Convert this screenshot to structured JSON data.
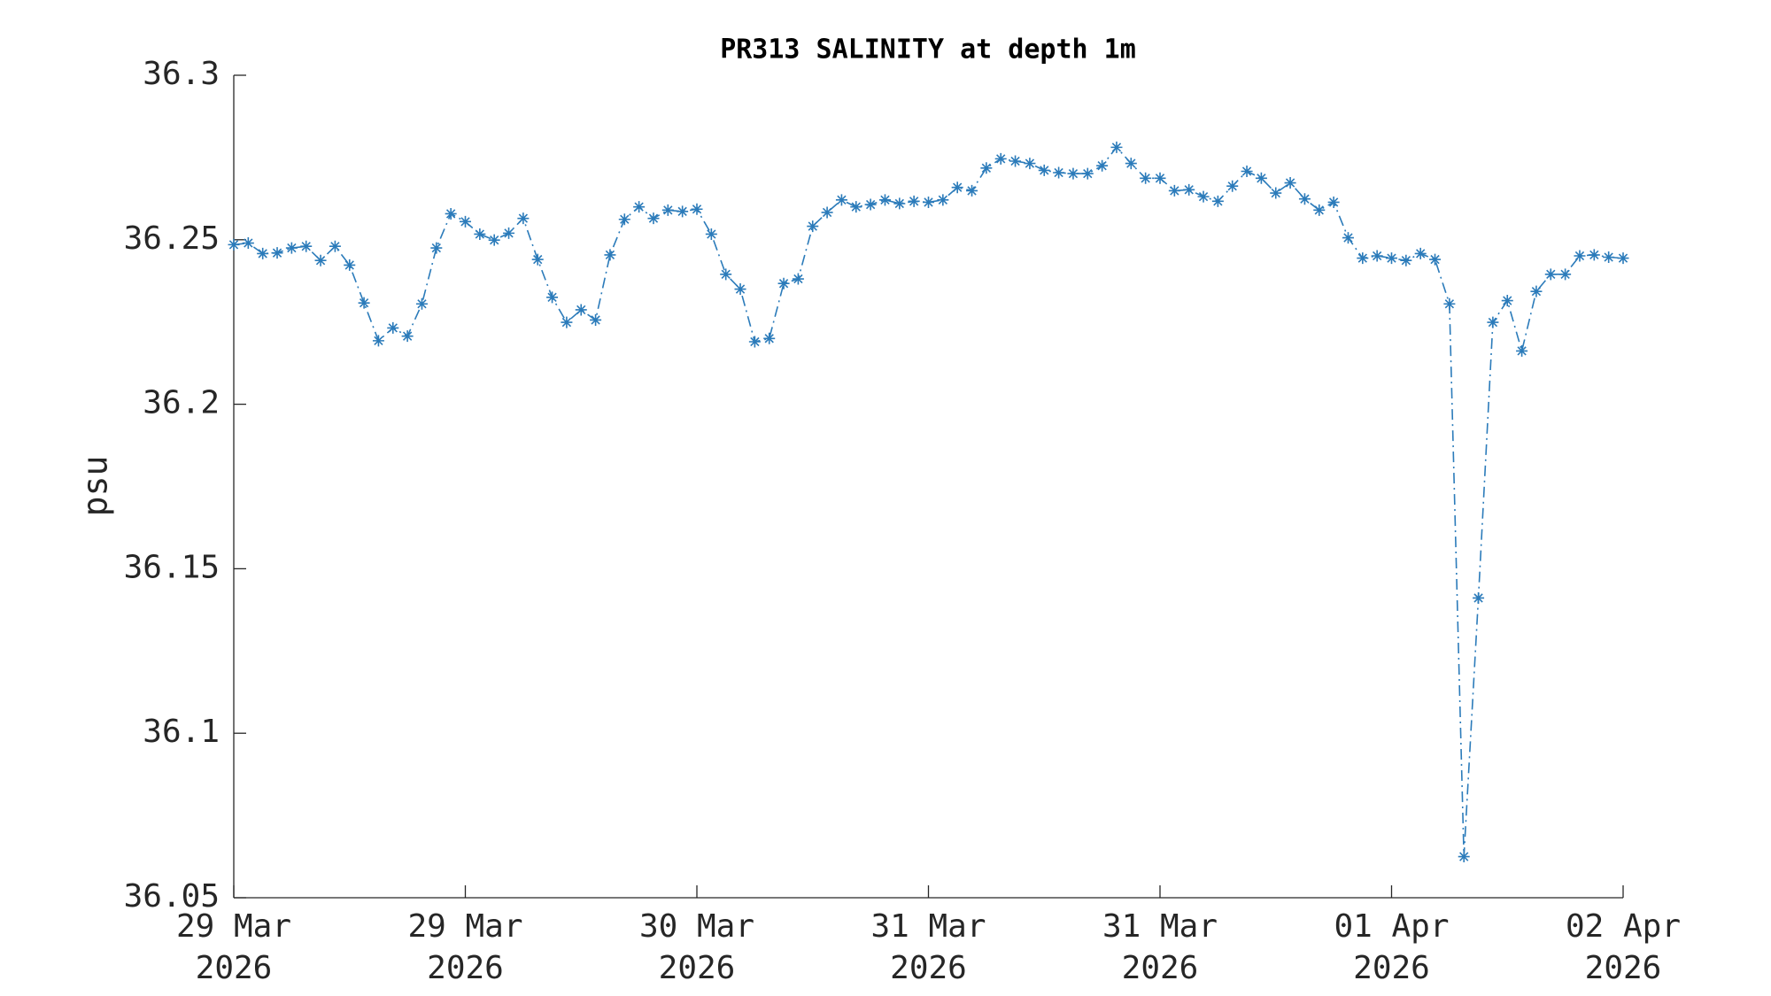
{
  "chart_data": {
    "type": "line",
    "title": "PR313 SALINITY at depth 1m",
    "y_label": "psu",
    "categories": [
      "29 Mar\n2026",
      null,
      null,
      null,
      null,
      null,
      null,
      null,
      null,
      null,
      null,
      null,
      null,
      null,
      null,
      null,
      "29 Mar\n2026",
      null,
      null,
      null,
      null,
      null,
      null,
      null,
      null,
      null,
      null,
      null,
      null,
      null,
      null,
      null,
      "30 Mar\n2026",
      null,
      null,
      null,
      null,
      null,
      null,
      null,
      null,
      null,
      null,
      null,
      null,
      null,
      null,
      null,
      "31 Mar\n2026",
      null,
      null,
      null,
      null,
      null,
      null,
      null,
      null,
      null,
      null,
      null,
      null,
      null,
      null,
      null,
      "31 Mar\n2026",
      null,
      null,
      null,
      null,
      null,
      null,
      null,
      null,
      null,
      null,
      null,
      null,
      null,
      null,
      null,
      "01 Apr\n2026",
      null,
      null,
      null,
      null,
      null,
      null,
      null,
      null,
      null,
      null,
      null,
      null,
      null,
      null,
      null,
      "02 Apr\n2026"
    ],
    "series": [
      {
        "name": "salinity",
        "color": "#2b7bba",
        "values": [
          36.2485,
          36.249,
          36.2458,
          36.246,
          36.2475,
          36.248,
          36.2437,
          36.248,
          36.2423,
          36.2308,
          36.2193,
          36.2232,
          36.2207,
          36.2305,
          36.2475,
          36.2579,
          36.2555,
          36.2517,
          36.2499,
          36.252,
          36.2565,
          36.244,
          36.2325,
          36.2249,
          36.2287,
          36.2256,
          36.2454,
          36.2562,
          36.26,
          36.2565,
          36.259,
          36.2586,
          36.2593,
          36.2517,
          36.2395,
          36.235,
          36.219,
          36.22,
          36.2367,
          36.2381,
          36.2541,
          36.2583,
          36.2621,
          36.26,
          36.2607,
          36.2621,
          36.261,
          36.2617,
          36.2614,
          36.2621,
          36.2659,
          36.2649,
          36.2718,
          36.2746,
          36.2739,
          36.2732,
          36.2711,
          36.2704,
          36.2701,
          36.2701,
          36.2725,
          36.2781,
          36.2732,
          36.2687,
          36.2687,
          36.2649,
          36.2652,
          36.2631,
          36.2617,
          36.2663,
          36.2708,
          36.2687,
          36.2642,
          36.2673,
          36.2624,
          36.259,
          36.2614,
          36.2506,
          36.2444,
          36.2451,
          36.2444,
          36.2437,
          36.2458,
          36.244,
          36.2305,
          36.0625,
          36.1411,
          36.2249,
          36.2315,
          36.2162,
          36.2343,
          36.2395,
          36.2395,
          36.2451,
          36.2454,
          36.2447,
          36.2444
        ]
      }
    ],
    "ylim": [
      36.05,
      36.3
    ],
    "yticks": [
      36.05,
      36.1,
      36.15,
      36.2,
      36.25,
      36.3
    ],
    "grid": false
  }
}
